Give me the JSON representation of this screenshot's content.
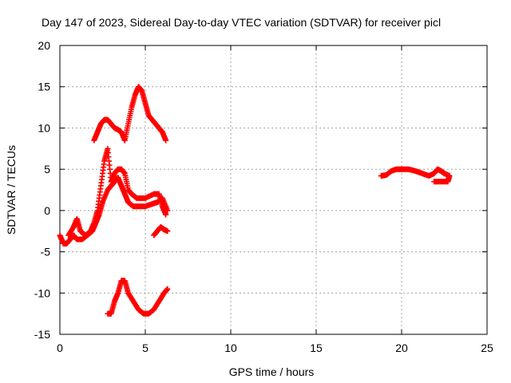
{
  "chart_data": {
    "type": "scatter",
    "title": "Day 147 of 2023, Sidereal Day-to-day VTEC variation (SDTVAR) for receiver picl",
    "xlabel": "GPS time / hours",
    "ylabel": "SDTVAR / TECUs",
    "xlim": [
      0,
      25
    ],
    "ylim": [
      -15,
      20
    ],
    "xticks": [
      0,
      5,
      10,
      15,
      20,
      25
    ],
    "yticks": [
      -15,
      -10,
      -5,
      0,
      5,
      10,
      15,
      20
    ],
    "grid": true,
    "marker": "+",
    "color": "#ff0000",
    "series": [
      {
        "points": [
          [
            2.0,
            8.5
          ],
          [
            2.2,
            9.5
          ],
          [
            2.4,
            10.5
          ],
          [
            2.6,
            11.0
          ],
          [
            2.8,
            11.0
          ],
          [
            3.0,
            10.5
          ],
          [
            3.2,
            10.0
          ],
          [
            3.4,
            9.8
          ],
          [
            3.6,
            9.5
          ],
          [
            3.8,
            8.5
          ],
          [
            4.0,
            10.5
          ],
          [
            4.2,
            12.5
          ],
          [
            4.4,
            14.0
          ],
          [
            4.6,
            15.0
          ],
          [
            4.8,
            14.5
          ],
          [
            5.0,
            13.0
          ],
          [
            5.2,
            11.5
          ],
          [
            5.4,
            11.0
          ],
          [
            5.6,
            10.5
          ],
          [
            5.8,
            10.0
          ],
          [
            6.0,
            9.5
          ],
          [
            6.2,
            8.5
          ]
        ]
      },
      {
        "points": [
          [
            0.5,
            -3.0
          ],
          [
            0.8,
            -2.0
          ],
          [
            1.0,
            -1.0
          ],
          [
            1.2,
            -2.5
          ],
          [
            1.5,
            -3.0
          ],
          [
            1.8,
            -2.5
          ],
          [
            2.0,
            -1.5
          ],
          [
            2.2,
            0.0
          ],
          [
            2.4,
            3.0
          ],
          [
            2.6,
            6.0
          ],
          [
            2.8,
            7.5
          ],
          [
            3.0,
            3.5
          ],
          [
            3.2,
            4.5
          ],
          [
            3.4,
            5.0
          ],
          [
            3.6,
            5.0
          ],
          [
            3.8,
            4.5
          ],
          [
            4.0,
            2.5
          ],
          [
            4.2,
            2.0
          ],
          [
            4.5,
            1.5
          ],
          [
            5.0,
            1.5
          ],
          [
            5.5,
            2.0
          ],
          [
            5.8,
            2.0
          ],
          [
            6.0,
            0.5
          ],
          [
            6.2,
            -0.5
          ]
        ]
      },
      {
        "points": [
          [
            0.0,
            -3.0
          ],
          [
            0.2,
            -4.0
          ],
          [
            0.4,
            -4.0
          ],
          [
            0.6,
            -3.5
          ],
          [
            0.8,
            -3.0
          ],
          [
            1.0,
            -3.5
          ],
          [
            1.3,
            -3.5
          ],
          [
            1.6,
            -3.0
          ],
          [
            1.9,
            -2.5
          ],
          [
            2.1,
            -1.5
          ],
          [
            2.3,
            -0.5
          ],
          [
            2.5,
            1.0
          ],
          [
            2.8,
            2.5
          ],
          [
            3.0,
            3.0
          ],
          [
            3.2,
            3.5
          ],
          [
            3.4,
            4.0
          ],
          [
            3.6,
            3.0
          ],
          [
            3.8,
            2.0
          ],
          [
            4.0,
            1.0
          ],
          [
            4.3,
            0.5
          ],
          [
            4.6,
            0.5
          ],
          [
            5.0,
            0.5
          ],
          [
            5.4,
            0.8
          ],
          [
            5.7,
            1.0
          ],
          [
            6.0,
            1.5
          ],
          [
            6.3,
            0.0
          ]
        ]
      },
      {
        "points": [
          [
            5.5,
            -3.0
          ],
          [
            5.7,
            -2.5
          ],
          [
            5.9,
            -2.0
          ],
          [
            6.1,
            -2.3
          ],
          [
            6.3,
            -2.5
          ]
        ]
      },
      {
        "points": [
          [
            2.8,
            -12.5
          ],
          [
            3.0,
            -12.5
          ],
          [
            3.2,
            -11.0
          ],
          [
            3.4,
            -10.0
          ],
          [
            3.6,
            -8.5
          ],
          [
            3.8,
            -8.5
          ],
          [
            4.0,
            -10.0
          ],
          [
            4.3,
            -11.0
          ],
          [
            4.6,
            -12.0
          ],
          [
            4.9,
            -12.5
          ],
          [
            5.2,
            -12.5
          ],
          [
            5.5,
            -12.0
          ],
          [
            5.8,
            -11.0
          ],
          [
            6.1,
            -10.0
          ],
          [
            6.3,
            -9.5
          ]
        ]
      },
      {
        "points": [
          [
            18.8,
            4.2
          ],
          [
            19.1,
            4.3
          ],
          [
            19.4,
            4.8
          ],
          [
            19.7,
            5.0
          ],
          [
            20.0,
            5.0
          ],
          [
            20.4,
            5.0
          ],
          [
            20.8,
            4.8
          ],
          [
            21.2,
            4.5
          ],
          [
            21.6,
            4.2
          ],
          [
            21.9,
            4.5
          ],
          [
            22.1,
            5.0
          ],
          [
            22.3,
            4.8
          ],
          [
            22.5,
            4.5
          ],
          [
            22.8,
            4.2
          ],
          [
            22.7,
            3.5
          ],
          [
            22.3,
            3.5
          ],
          [
            21.9,
            3.5
          ]
        ]
      }
    ]
  }
}
